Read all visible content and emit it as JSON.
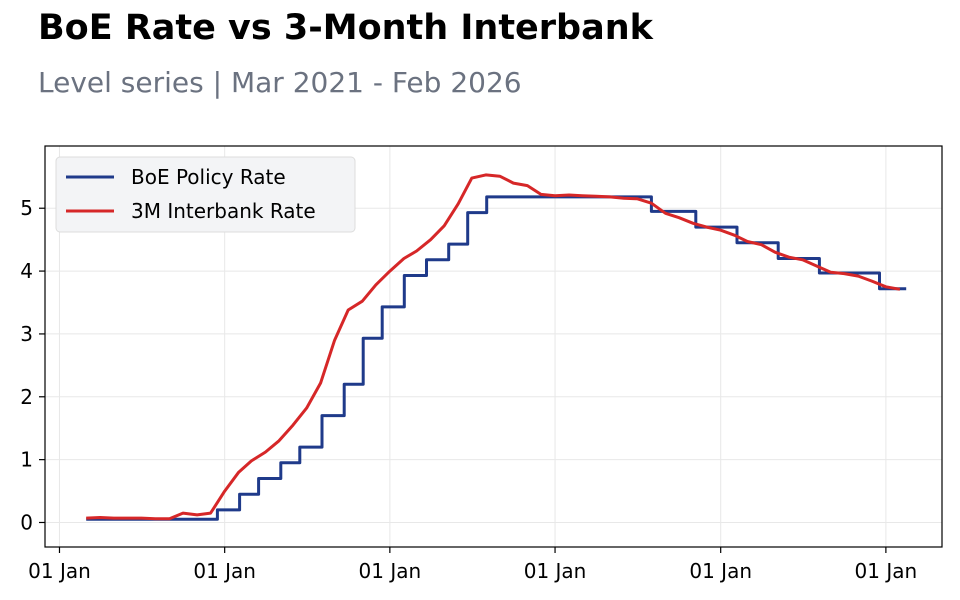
{
  "title": "BoE Rate vs 3-Month Interbank",
  "subtitle": "Level series | Mar 2021 - Feb 2026",
  "chart_data": {
    "type": "line",
    "title": "BoE Rate vs 3-Month Interbank",
    "subtitle": "Level series | Mar 2021 - Feb 2026",
    "xlabel": "",
    "ylabel": "",
    "x_ticks": [
      {
        "date": "2021-01-01",
        "label": "01 Jan"
      },
      {
        "date": "2022-01-01",
        "label": "01 Jan"
      },
      {
        "date": "2023-01-01",
        "label": "01 Jan"
      },
      {
        "date": "2024-01-01",
        "label": "01 Jan"
      },
      {
        "date": "2025-01-01",
        "label": "01 Jan"
      },
      {
        "date": "2026-01-01",
        "label": "01 Jan"
      }
    ],
    "y_ticks": [
      0,
      1,
      2,
      3,
      4,
      5
    ],
    "xlim": [
      "2020-11-30",
      "2026-05-05"
    ],
    "ylim": [
      -0.39,
      5.99
    ],
    "grid": true,
    "legend_position": "top-left",
    "series": [
      {
        "name": "BoE Policy Rate",
        "color": "#1f3a8a",
        "style": "step",
        "points": [
          [
            "2021-03-01",
            0.05
          ],
          [
            "2021-12-16",
            0.05
          ],
          [
            "2021-12-16",
            0.2
          ],
          [
            "2022-02-03",
            0.2
          ],
          [
            "2022-02-03",
            0.45
          ],
          [
            "2022-03-17",
            0.45
          ],
          [
            "2022-03-17",
            0.7
          ],
          [
            "2022-05-05",
            0.7
          ],
          [
            "2022-05-05",
            0.95
          ],
          [
            "2022-06-16",
            0.95
          ],
          [
            "2022-06-16",
            1.2
          ],
          [
            "2022-08-04",
            1.2
          ],
          [
            "2022-08-04",
            1.7
          ],
          [
            "2022-09-22",
            1.7
          ],
          [
            "2022-09-22",
            2.2
          ],
          [
            "2022-11-03",
            2.2
          ],
          [
            "2022-11-03",
            2.93
          ],
          [
            "2022-12-15",
            2.93
          ],
          [
            "2022-12-15",
            3.43
          ],
          [
            "2023-02-02",
            3.43
          ],
          [
            "2023-02-02",
            3.93
          ],
          [
            "2023-03-23",
            3.93
          ],
          [
            "2023-03-23",
            4.18
          ],
          [
            "2023-05-11",
            4.18
          ],
          [
            "2023-05-11",
            4.43
          ],
          [
            "2023-06-22",
            4.43
          ],
          [
            "2023-06-22",
            4.93
          ],
          [
            "2023-08-03",
            4.93
          ],
          [
            "2023-08-03",
            5.18
          ],
          [
            "2024-08-01",
            5.18
          ],
          [
            "2024-08-01",
            4.95
          ],
          [
            "2024-11-07",
            4.95
          ],
          [
            "2024-11-07",
            4.7
          ],
          [
            "2025-02-06",
            4.7
          ],
          [
            "2025-02-06",
            4.45
          ],
          [
            "2025-05-08",
            4.45
          ],
          [
            "2025-05-08",
            4.2
          ],
          [
            "2025-08-07",
            4.2
          ],
          [
            "2025-08-07",
            3.97
          ],
          [
            "2025-12-18",
            3.97
          ],
          [
            "2025-12-18",
            3.72
          ],
          [
            "2026-02-15",
            3.72
          ]
        ]
      },
      {
        "name": "3M Interbank Rate",
        "color": "#d62728",
        "style": "line",
        "points": [
          [
            "2021-03-01",
            0.07
          ],
          [
            "2021-04-01",
            0.08
          ],
          [
            "2021-05-01",
            0.07
          ],
          [
            "2021-06-01",
            0.07
          ],
          [
            "2021-07-01",
            0.07
          ],
          [
            "2021-08-01",
            0.06
          ],
          [
            "2021-09-01",
            0.06
          ],
          [
            "2021-10-01",
            0.15
          ],
          [
            "2021-11-01",
            0.12
          ],
          [
            "2021-12-01",
            0.15
          ],
          [
            "2022-01-01",
            0.5
          ],
          [
            "2022-02-01",
            0.8
          ],
          [
            "2022-03-01",
            0.98
          ],
          [
            "2022-04-01",
            1.12
          ],
          [
            "2022-05-01",
            1.3
          ],
          [
            "2022-06-01",
            1.55
          ],
          [
            "2022-07-01",
            1.82
          ],
          [
            "2022-08-01",
            2.22
          ],
          [
            "2022-09-01",
            2.9
          ],
          [
            "2022-10-01",
            3.38
          ],
          [
            "2022-11-01",
            3.52
          ],
          [
            "2022-12-01",
            3.78
          ],
          [
            "2023-01-01",
            4.0
          ],
          [
            "2023-02-01",
            4.2
          ],
          [
            "2023-03-01",
            4.32
          ],
          [
            "2023-04-01",
            4.5
          ],
          [
            "2023-05-01",
            4.72
          ],
          [
            "2023-06-01",
            5.07
          ],
          [
            "2023-07-01",
            5.48
          ],
          [
            "2023-08-01",
            5.53
          ],
          [
            "2023-09-01",
            5.51
          ],
          [
            "2023-10-01",
            5.4
          ],
          [
            "2023-11-01",
            5.36
          ],
          [
            "2023-12-01",
            5.22
          ],
          [
            "2024-01-01",
            5.2
          ],
          [
            "2024-02-01",
            5.21
          ],
          [
            "2024-03-01",
            5.2
          ],
          [
            "2024-04-01",
            5.19
          ],
          [
            "2024-05-01",
            5.18
          ],
          [
            "2024-06-01",
            5.16
          ],
          [
            "2024-07-01",
            5.15
          ],
          [
            "2024-08-01",
            5.08
          ],
          [
            "2024-09-01",
            4.92
          ],
          [
            "2024-10-01",
            4.85
          ],
          [
            "2024-11-01",
            4.76
          ],
          [
            "2024-12-01",
            4.7
          ],
          [
            "2025-01-01",
            4.65
          ],
          [
            "2025-02-01",
            4.57
          ],
          [
            "2025-03-01",
            4.47
          ],
          [
            "2025-04-01",
            4.42
          ],
          [
            "2025-05-01",
            4.3
          ],
          [
            "2025-06-01",
            4.22
          ],
          [
            "2025-07-01",
            4.18
          ],
          [
            "2025-08-01",
            4.08
          ],
          [
            "2025-09-01",
            3.98
          ],
          [
            "2025-10-01",
            3.96
          ],
          [
            "2025-11-01",
            3.92
          ],
          [
            "2025-12-01",
            3.84
          ],
          [
            "2026-01-01",
            3.75
          ],
          [
            "2026-02-01",
            3.71
          ]
        ]
      }
    ]
  }
}
